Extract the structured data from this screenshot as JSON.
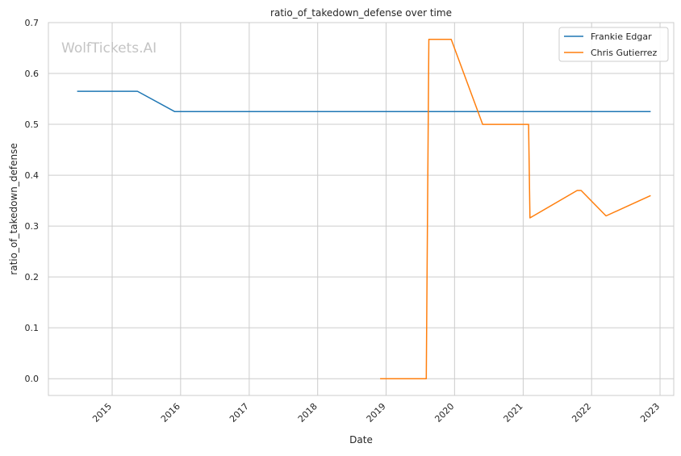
{
  "watermark": "WolfTickets.AI",
  "chart_data": {
    "type": "line",
    "title": "ratio_of_takedown_defense over time",
    "xlabel": "Date",
    "ylabel": "ratio_of_takedown_defense",
    "x_type": "date",
    "xlim": [
      "2014-01-26",
      "2023-03-15"
    ],
    "ylim": [
      -0.033,
      0.7
    ],
    "x_ticks": [
      {
        "date": "2015-01-01",
        "label": "2015"
      },
      {
        "date": "2016-01-01",
        "label": "2016"
      },
      {
        "date": "2017-01-01",
        "label": "2017"
      },
      {
        "date": "2018-01-01",
        "label": "2018"
      },
      {
        "date": "2019-01-01",
        "label": "2019"
      },
      {
        "date": "2020-01-01",
        "label": "2020"
      },
      {
        "date": "2021-01-01",
        "label": "2021"
      },
      {
        "date": "2022-01-01",
        "label": "2022"
      },
      {
        "date": "2023-01-01",
        "label": "2023"
      }
    ],
    "y_ticks": [
      {
        "value": 0.0,
        "label": "0.0"
      },
      {
        "value": 0.1,
        "label": "0.1"
      },
      {
        "value": 0.2,
        "label": "0.2"
      },
      {
        "value": 0.3,
        "label": "0.3"
      },
      {
        "value": 0.4,
        "label": "0.4"
      },
      {
        "value": 0.5,
        "label": "0.5"
      },
      {
        "value": 0.6,
        "label": "0.6"
      },
      {
        "value": 0.7,
        "label": "0.7"
      }
    ],
    "grid": true,
    "legend_position": "top-right",
    "series": [
      {
        "name": "Frankie Edgar",
        "color": "#1f77b4",
        "points": [
          {
            "x": "2014-06-28",
            "y": 0.565
          },
          {
            "x": "2015-05-16",
            "y": 0.565
          },
          {
            "x": "2015-12-01",
            "y": 0.525
          },
          {
            "x": "2022-11-12",
            "y": 0.525
          }
        ]
      },
      {
        "name": "Chris Gutierrez",
        "color": "#ff7f0e",
        "points": [
          {
            "x": "2018-11-30",
            "y": 0.0
          },
          {
            "x": "2019-08-03",
            "y": 0.0
          },
          {
            "x": "2019-08-17",
            "y": 0.667
          },
          {
            "x": "2019-12-14",
            "y": 0.667
          },
          {
            "x": "2020-05-30",
            "y": 0.5
          },
          {
            "x": "2021-01-30",
            "y": 0.5
          },
          {
            "x": "2021-02-06",
            "y": 0.316
          },
          {
            "x": "2021-10-16",
            "y": 0.37
          },
          {
            "x": "2021-11-06",
            "y": 0.37
          },
          {
            "x": "2022-03-19",
            "y": 0.32
          },
          {
            "x": "2022-11-12",
            "y": 0.36
          }
        ]
      }
    ]
  }
}
